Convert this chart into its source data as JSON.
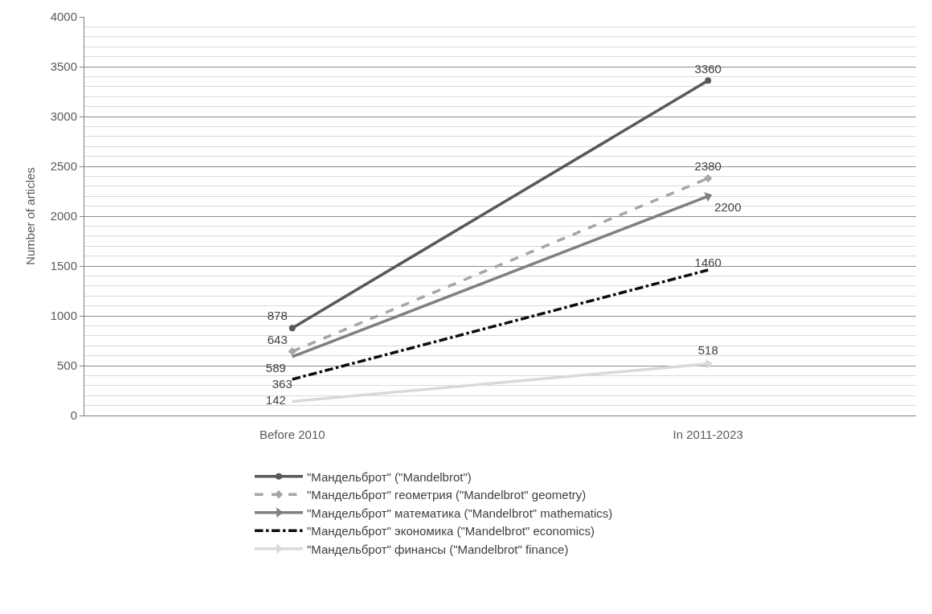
{
  "chart_data": {
    "type": "line",
    "ylabel": "Number of articles",
    "categories": [
      "Before 2010",
      "In 2011-2023"
    ],
    "series": [
      {
        "name": "\"Мандельброт\" (\"Mandelbrot\")",
        "color": "#595959",
        "values": [
          878,
          3360
        ],
        "marker": "circle",
        "line_style": "solid"
      },
      {
        "name": "\"Мандельброт\" геометрия (\"Mandelbrot\" geometry)",
        "color": "#a6a6a6",
        "values": [
          643,
          2380
        ],
        "marker": "diamond",
        "line_style": "dashed"
      },
      {
        "name": "\"Мандельброт\" математика (\"Mandelbrot\" mathematics)",
        "color": "#808080",
        "values": [
          589,
          2200
        ],
        "marker": "triangle",
        "line_style": "solid"
      },
      {
        "name": "\"Мандельброт\" экономика (\"Mandelbrot\" economics)",
        "color": "#0d0d0d",
        "values": [
          363,
          1460
        ],
        "marker": "none",
        "line_style": "dashdot"
      },
      {
        "name": "\"Мандельброт\" финансы (\"Mandelbrot\" finance)",
        "color": "#d9d9d9",
        "values": [
          142,
          518
        ],
        "marker": "triangle",
        "line_style": "solid"
      }
    ],
    "ylim": [
      0,
      4000
    ],
    "yticks": [
      0,
      500,
      1000,
      1500,
      2000,
      2500,
      3000,
      3500,
      4000
    ],
    "grid": "y",
    "legend": "bottom",
    "data_labels": true
  }
}
